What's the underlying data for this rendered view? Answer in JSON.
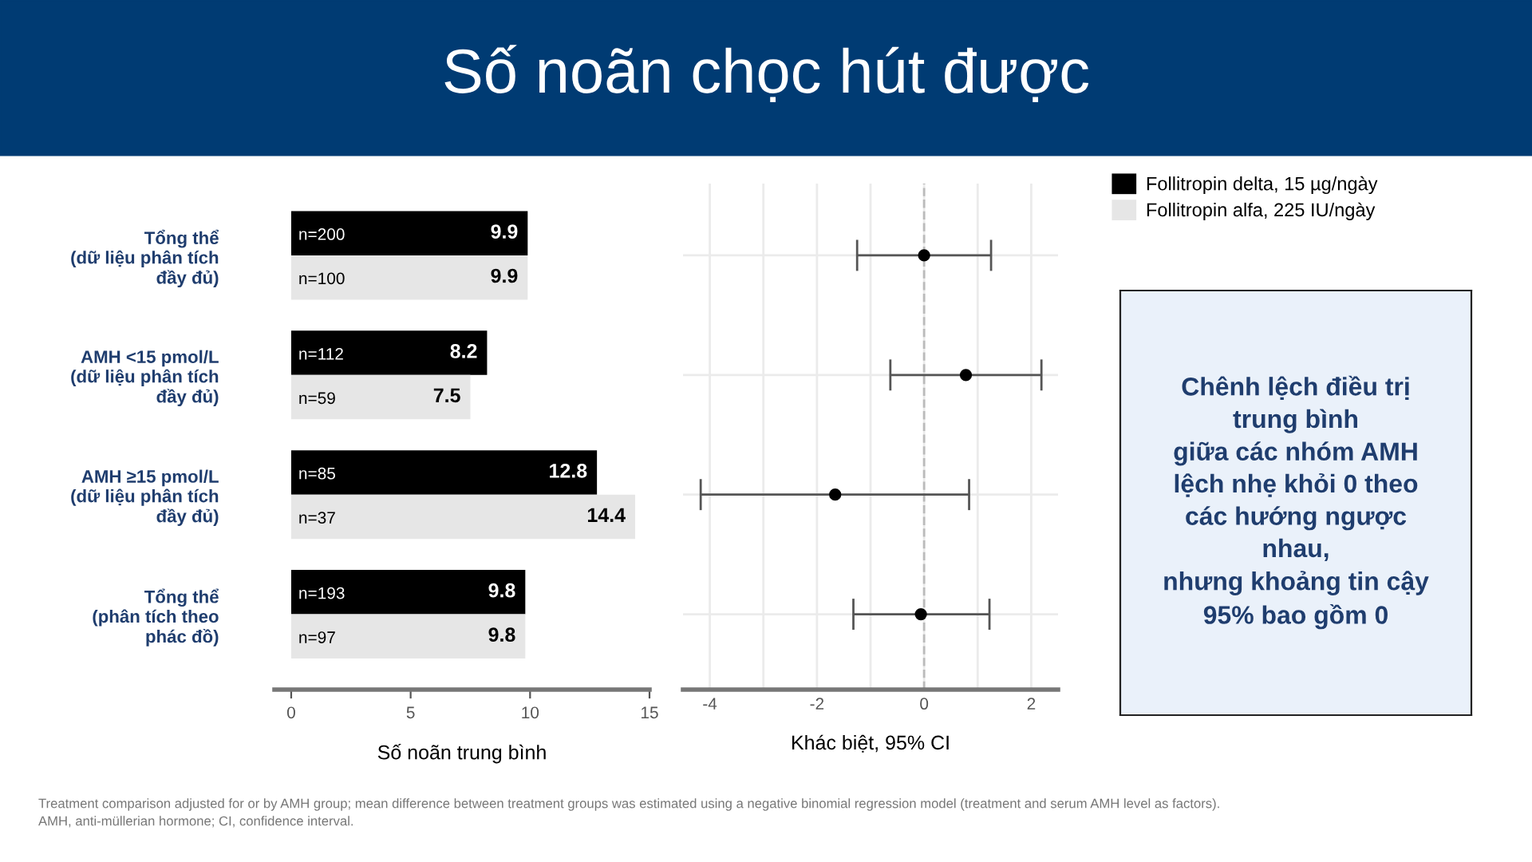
{
  "chart_data": [
    {
      "type": "bar",
      "orientation": "horizontal",
      "title": "Số noãn chọc hút được",
      "xlabel": "Số noãn trung bình",
      "categories": [
        "Tổng thể\n(dữ liệu phân tích\nđầy đủ)",
        "AMH <15 pmol/L\n(dữ liệu phân tích\nđầy đủ)",
        "AMH ≥15 pmol/L\n(dữ liệu phân tích\nđầy đủ)",
        "Tổng thể\n(phân tích theo\nphác đồ)"
      ],
      "series": [
        {
          "name": "Follitropin delta, 15 µg/ngày",
          "color": "#000000",
          "values": [
            9.9,
            8.2,
            12.8,
            9.8
          ]
        },
        {
          "name": "Follitropin alfa, 225 IU/ngày",
          "color": "#e6e6e6",
          "values": [
            9.9,
            7.5,
            14.4,
            9.8
          ]
        }
      ],
      "data_labels": true,
      "xlim": [
        -0.7,
        15
      ],
      "xticks": [
        0,
        5,
        10,
        15
      ],
      "legend": "right",
      "grid": false,
      "annotations": [
        {
          "text": "n=200"
        },
        {
          "text": "n=100"
        },
        {
          "text": "n=112"
        },
        {
          "text": "n=59"
        },
        {
          "text": "n=85"
        },
        {
          "text": "n=37"
        },
        {
          "text": "n=193"
        },
        {
          "text": "n=97"
        },
        "Treatment comparison adjusted for or by AMH group; mean difference between treatment groups was estimated using a negative binomial regression model (treatment and serum AMH level as factors).",
        "AMH, anti-müllerian hormone; CI, confidence interval."
      ]
    },
    {
      "type": "scatter",
      "orientation": "horizontal",
      "xlabel": "Khác biệt, 95% CI",
      "categories": [
        null,
        null,
        null,
        null
      ],
      "series": [
        {
          "color": "#000000",
          "values": [
            0.0,
            0.78,
            -1.66,
            -0.06
          ],
          "errors": [
            [
              -1.25,
              1.25
            ],
            [
              -0.63,
              2.19
            ],
            [
              -4.17,
              0.84
            ],
            [
              -1.32,
              1.22
            ]
          ]
        }
      ],
      "marker": "circle",
      "xlim": [
        -4.5,
        2.5
      ],
      "xticks": [
        -4,
        {
          "value": -3,
          "label": null
        },
        -2,
        {
          "value": -1,
          "label": null
        },
        0,
        {
          "value": 1,
          "label": null
        },
        2
      ],
      "grid": true,
      "ref_lines": [
        {
          "axis": "x",
          "value": 0,
          "color": "#bbbbbb",
          "line_style": "dashed"
        }
      ]
    },
    {
      "type": "other",
      "annotations": [
        "Chênh lệch điều trị\ntrung bình\ngiữa các nhóm AMH\nlệch nhẹ khỏi 0 theo\ncác hướng ngược\nnhau,\nnhưng khoảng tin cậy\n95% bao gồm 0"
      ]
    }
  ]
}
